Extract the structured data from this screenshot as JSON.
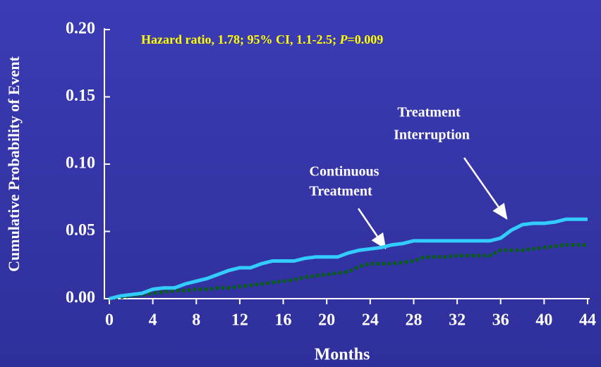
{
  "chart_data": {
    "type": "line",
    "annotation": {
      "prefix": "Hazard ratio, 1.78; 95% CI, 1.1-2.5; ",
      "p": "P",
      "suffix": "=0.009"
    },
    "ylabel": "Cumulative Probability of Event",
    "xlabel": "Months",
    "x": [
      0,
      1,
      2,
      3,
      4,
      5,
      6,
      7,
      8,
      9,
      10,
      11,
      12,
      13,
      14,
      15,
      16,
      17,
      18,
      19,
      20,
      21,
      22,
      23,
      24,
      25,
      26,
      27,
      28,
      29,
      30,
      31,
      32,
      33,
      34,
      35,
      36,
      37,
      38,
      39,
      40,
      41,
      42,
      43,
      44
    ],
    "series": [
      {
        "name": "Treatment Interruption",
        "name_lines": [
          "Treatment",
          "Interruption"
        ],
        "color": "#33ccff",
        "dashed": false,
        "values": [
          0,
          0.002,
          0.003,
          0.004,
          0.007,
          0.008,
          0.008,
          0.011,
          0.013,
          0.015,
          0.018,
          0.021,
          0.023,
          0.023,
          0.026,
          0.028,
          0.028,
          0.028,
          0.03,
          0.031,
          0.031,
          0.031,
          0.034,
          0.036,
          0.037,
          0.038,
          0.04,
          0.041,
          0.043,
          0.043,
          0.043,
          0.043,
          0.043,
          0.043,
          0.043,
          0.043,
          0.045,
          0.051,
          0.055,
          0.056,
          0.056,
          0.057,
          0.059,
          0.059,
          0.059
        ]
      },
      {
        "name": "Continuous Treatment",
        "name_lines": [
          "Continuous",
          "Treatment"
        ],
        "color": "#006600",
        "dashed": true,
        "values": [
          0,
          0.001,
          0.002,
          0.003,
          0.004,
          0.005,
          0.006,
          0.006,
          0.007,
          0.007,
          0.008,
          0.008,
          0.009,
          0.01,
          0.011,
          0.012,
          0.013,
          0.014,
          0.016,
          0.017,
          0.018,
          0.019,
          0.02,
          0.024,
          0.026,
          0.026,
          0.026,
          0.027,
          0.028,
          0.031,
          0.031,
          0.031,
          0.032,
          0.032,
          0.032,
          0.032,
          0.036,
          0.036,
          0.036,
          0.037,
          0.038,
          0.039,
          0.04,
          0.04,
          0.04
        ]
      }
    ],
    "xlim": [
      0,
      44
    ],
    "xticks": [
      0,
      4,
      8,
      12,
      16,
      20,
      24,
      28,
      32,
      36,
      40,
      44
    ],
    "ylim": [
      0,
      0.2
    ],
    "yticks": [
      {
        "value": 0,
        "label": "0.00"
      },
      {
        "value": 0.05,
        "label": "0.05"
      },
      {
        "value": 0.1,
        "label": "0.10"
      },
      {
        "value": 0.15,
        "label": "0.15"
      },
      {
        "value": 0.2,
        "label": "0.20"
      }
    ],
    "grid": false
  }
}
